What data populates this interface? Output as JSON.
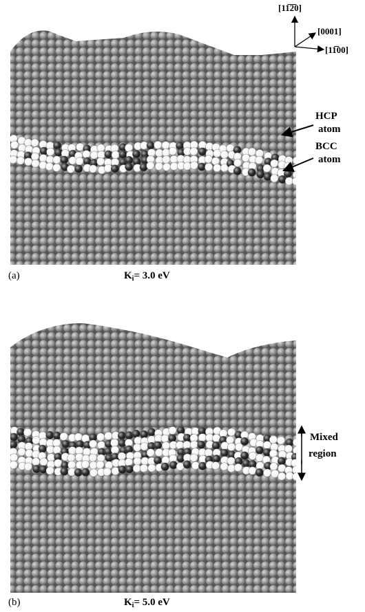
{
  "axes": {
    "up": "[11̅2̅0]",
    "depth": "[0001]",
    "right": "[11̅̅00]"
  },
  "panels": [
    {
      "label": "(a)",
      "energy": {
        "symbol": "K",
        "subscript": "i",
        "text": "= 3.0 eV"
      },
      "annotations": [
        [
          "HCP",
          "atom"
        ],
        [
          "BCC",
          "atom"
        ]
      ]
    },
    {
      "label": "(b)",
      "energy": {
        "symbol": "K",
        "subscript": "i",
        "text": "= 5.0 eV"
      },
      "annotations": [
        [
          "Mixed",
          "region"
        ]
      ]
    }
  ]
}
